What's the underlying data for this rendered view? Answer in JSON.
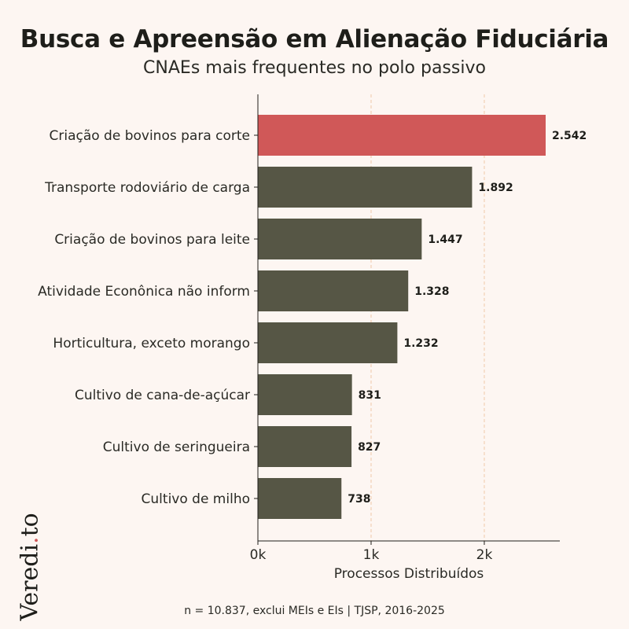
{
  "header": {
    "title": "Busca e Apreensão em Alienação Fiduciária",
    "subtitle": "CNAEs mais frequentes no polo passivo"
  },
  "footer": {
    "note": "n = 10.837, exclui MEIs e EIs | TJSP, 2016-2025"
  },
  "logo": {
    "text": "Veredi.to"
  },
  "colors": {
    "background": "#fdf6f2",
    "highlight": "#d05858",
    "bar": "#565645",
    "grid": "#f0c9a8"
  },
  "chart_data": {
    "type": "bar",
    "orientation": "horizontal",
    "categories": [
      "Criação de bovinos para corte",
      "Transporte rodoviário de carga",
      "Criação de bovinos para leite",
      "Atividade Econônica não inform",
      "Horticultura, exceto morango",
      "Cultivo de cana-de-açúcar",
      "Cultivo de seringueira",
      "Cultivo de milho"
    ],
    "values": [
      2542,
      1892,
      1447,
      1328,
      1232,
      831,
      827,
      738
    ],
    "data_labels": [
      "2.542",
      "1.892",
      "1.447",
      "1.328",
      "1.232",
      "831",
      "827",
      "738"
    ],
    "highlighted_index": 0,
    "xlabel": "Processos Distribuídos",
    "ylabel": "",
    "xlim": [
      0,
      2667
    ],
    "xticks": [
      0,
      1000,
      2000
    ],
    "xtick_labels": [
      "0k",
      "1k",
      "2k"
    ],
    "grid": "vertical dashed"
  }
}
